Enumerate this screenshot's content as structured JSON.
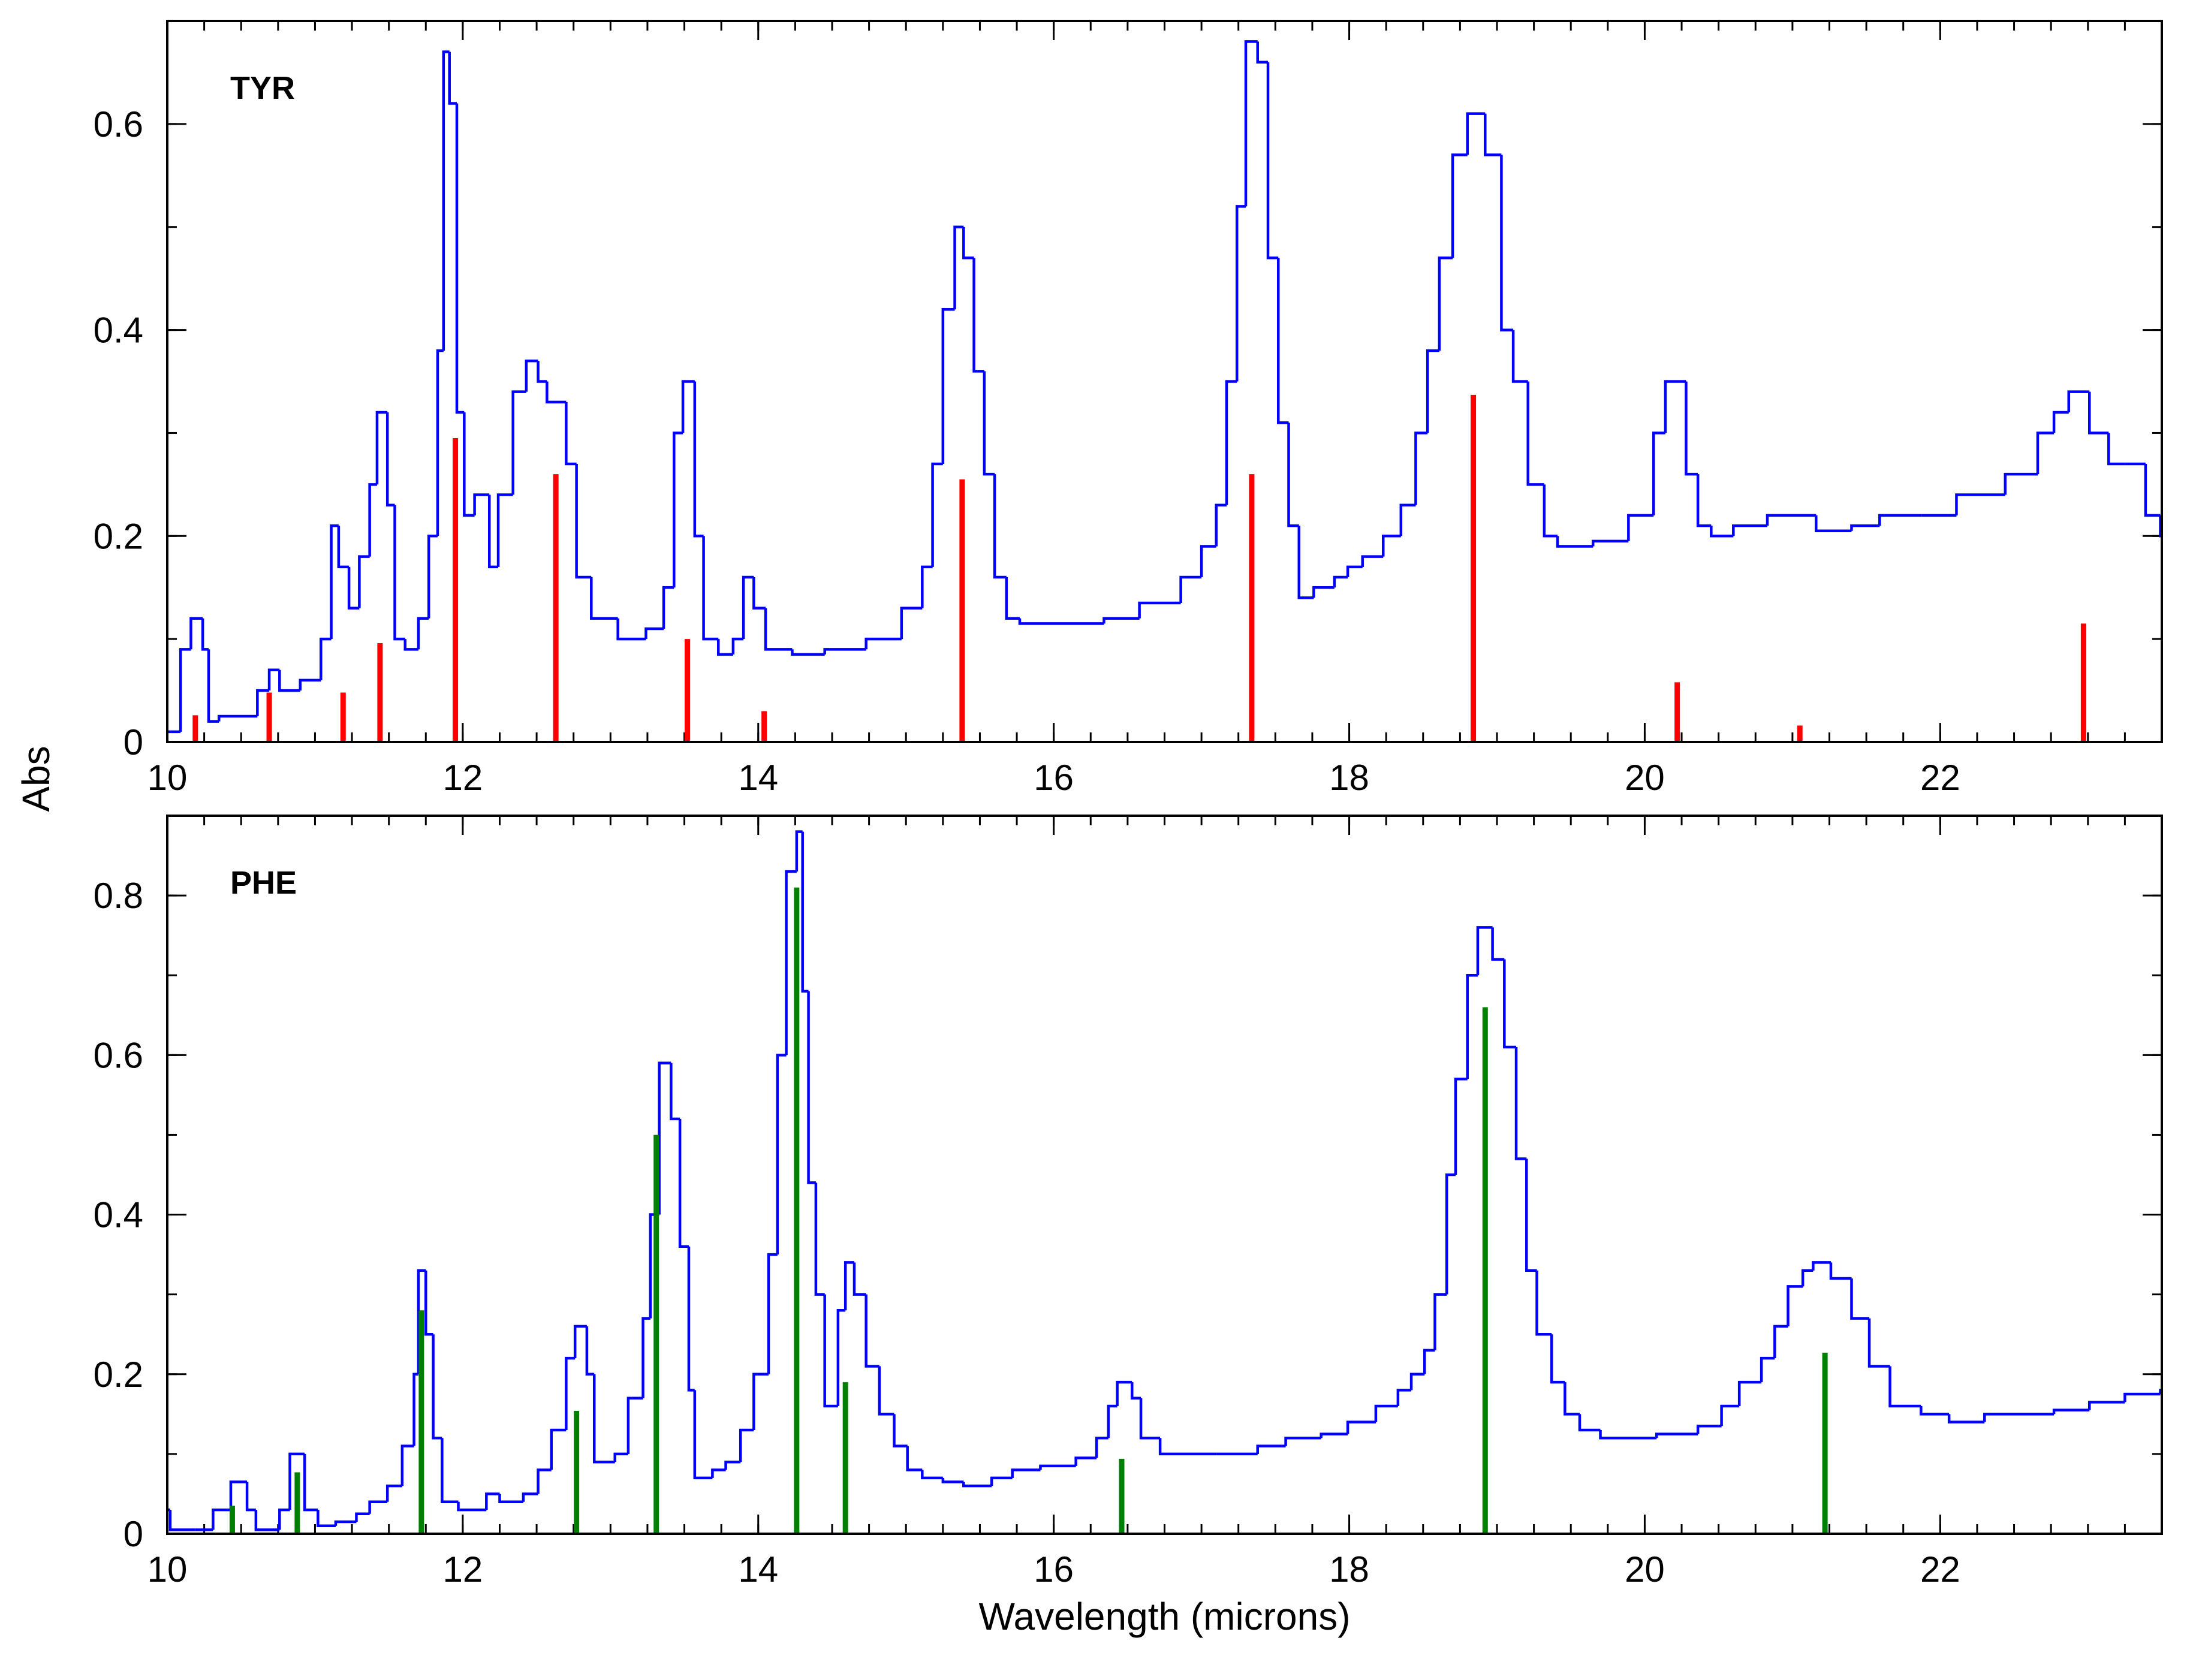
{
  "chart_data": [
    {
      "type": "line",
      "step": true,
      "label": "TYR",
      "label_color": "#ff0000",
      "ylabel": "Abs",
      "color": "#0000ff",
      "x": [
        10.0,
        10.09,
        10.16,
        10.24,
        10.28,
        10.35,
        10.61,
        10.69,
        10.76,
        10.9,
        11.04,
        11.11,
        11.16,
        11.23,
        11.3,
        11.37,
        11.42,
        11.49,
        11.54,
        11.61,
        11.7,
        11.77,
        11.83,
        11.87,
        11.91,
        11.96,
        12.01,
        12.08,
        12.18,
        12.24,
        12.34,
        12.43,
        12.51,
        12.57,
        12.7,
        12.77,
        12.87,
        13.05,
        13.24,
        13.36,
        13.43,
        13.49,
        13.57,
        13.63,
        13.73,
        13.83,
        13.9,
        13.97,
        14.05,
        14.23,
        14.45,
        14.73,
        14.97,
        15.11,
        15.18,
        15.25,
        15.33,
        15.39,
        15.46,
        15.53,
        15.6,
        15.68,
        15.77,
        16.34,
        16.58,
        16.86,
        17.0,
        17.1,
        17.17,
        17.24,
        17.3,
        17.38,
        17.45,
        17.52,
        17.59,
        17.66,
        17.76,
        17.9,
        17.99,
        18.09,
        18.23,
        18.35,
        18.45,
        18.53,
        18.61,
        18.7,
        18.8,
        18.92,
        19.03,
        19.11,
        19.21,
        19.32,
        19.41,
        19.65,
        19.89,
        20.06,
        20.14,
        20.28,
        20.36,
        20.45,
        20.6,
        20.83,
        21.16,
        21.4,
        21.59,
        21.87,
        22.11,
        22.44,
        22.66,
        22.77,
        22.87,
        23.01,
        23.14,
        23.25,
        23.39,
        23.49
      ],
      "values": [
        0.01,
        0.09,
        0.12,
        0.09,
        0.02,
        0.025,
        0.05,
        0.07,
        0.05,
        0.06,
        0.1,
        0.21,
        0.17,
        0.13,
        0.18,
        0.25,
        0.32,
        0.23,
        0.1,
        0.09,
        0.12,
        0.2,
        0.38,
        0.67,
        0.62,
        0.32,
        0.22,
        0.24,
        0.17,
        0.24,
        0.34,
        0.37,
        0.35,
        0.33,
        0.27,
        0.16,
        0.12,
        0.1,
        0.11,
        0.15,
        0.3,
        0.35,
        0.2,
        0.1,
        0.085,
        0.1,
        0.16,
        0.13,
        0.09,
        0.085,
        0.09,
        0.1,
        0.13,
        0.17,
        0.27,
        0.42,
        0.5,
        0.47,
        0.36,
        0.26,
        0.16,
        0.12,
        0.115,
        0.12,
        0.135,
        0.16,
        0.19,
        0.23,
        0.35,
        0.52,
        0.68,
        0.66,
        0.47,
        0.31,
        0.21,
        0.14,
        0.15,
        0.16,
        0.17,
        0.18,
        0.2,
        0.23,
        0.3,
        0.38,
        0.47,
        0.57,
        0.61,
        0.57,
        0.4,
        0.35,
        0.25,
        0.2,
        0.19,
        0.195,
        0.22,
        0.3,
        0.35,
        0.26,
        0.21,
        0.2,
        0.21,
        0.22,
        0.205,
        0.21,
        0.22,
        0.22,
        0.24,
        0.26,
        0.3,
        0.32,
        0.34,
        0.3,
        0.27,
        0.27,
        0.22,
        0.2
      ],
      "sticks": {
        "color": "#ff0000",
        "x": [
          10.19,
          10.69,
          11.19,
          11.44,
          11.95,
          12.63,
          13.52,
          14.04,
          15.38,
          17.34,
          18.84,
          20.22,
          21.05,
          22.97
        ],
        "values": [
          0.026,
          0.048,
          0.048,
          0.096,
          0.295,
          0.26,
          0.1,
          0.03,
          0.255,
          0.26,
          0.337,
          0.058,
          0.016,
          0.115
        ]
      },
      "xlim": [
        10,
        23.5
      ],
      "ylim": [
        0,
        0.7
      ],
      "xticks": [
        10,
        12,
        14,
        16,
        18,
        20,
        22
      ],
      "yticks": [
        0,
        0.2,
        0.4,
        0.6
      ],
      "xminor": 0.25,
      "yminor": 0.1
    },
    {
      "type": "line",
      "step": true,
      "label": "PHE",
      "label_color": "#008000",
      "xlabel": "Wavelength (microns)",
      "color": "#0000ff",
      "x": [
        10.0,
        10.02,
        10.19,
        10.31,
        10.43,
        10.54,
        10.6,
        10.76,
        10.83,
        10.93,
        11.02,
        11.14,
        11.28,
        11.37,
        11.49,
        11.59,
        11.67,
        11.7,
        11.75,
        11.8,
        11.86,
        11.97,
        12.16,
        12.25,
        12.41,
        12.51,
        12.6,
        12.7,
        12.76,
        12.84,
        12.89,
        13.03,
        13.12,
        13.22,
        13.27,
        13.33,
        13.41,
        13.47,
        13.53,
        13.57,
        13.69,
        13.78,
        13.88,
        13.97,
        14.07,
        14.13,
        14.19,
        14.26,
        14.3,
        14.34,
        14.39,
        14.45,
        14.54,
        14.59,
        14.65,
        14.73,
        14.82,
        14.92,
        15.01,
        15.11,
        15.25,
        15.39,
        15.58,
        15.72,
        15.91,
        16.15,
        16.29,
        16.37,
        16.43,
        16.53,
        16.59,
        16.72,
        17.1,
        17.38,
        17.57,
        17.81,
        17.99,
        18.18,
        18.33,
        18.42,
        18.51,
        18.58,
        18.66,
        18.72,
        18.8,
        18.87,
        18.97,
        19.05,
        19.13,
        19.2,
        19.27,
        19.37,
        19.46,
        19.56,
        19.7,
        20.08,
        20.36,
        20.52,
        20.64,
        20.79,
        20.88,
        20.97,
        21.07,
        21.14,
        21.26,
        21.4,
        21.52,
        21.66,
        21.87,
        22.06,
        22.3,
        22.77,
        23.01,
        23.25,
        23.49
      ],
      "values": [
        0.03,
        0.005,
        0.005,
        0.03,
        0.065,
        0.03,
        0.005,
        0.03,
        0.1,
        0.03,
        0.01,
        0.015,
        0.025,
        0.04,
        0.06,
        0.11,
        0.2,
        0.33,
        0.25,
        0.12,
        0.04,
        0.03,
        0.05,
        0.04,
        0.05,
        0.08,
        0.13,
        0.22,
        0.26,
        0.2,
        0.09,
        0.1,
        0.17,
        0.27,
        0.4,
        0.59,
        0.52,
        0.36,
        0.18,
        0.07,
        0.08,
        0.09,
        0.13,
        0.2,
        0.35,
        0.6,
        0.83,
        0.88,
        0.68,
        0.44,
        0.3,
        0.16,
        0.28,
        0.34,
        0.3,
        0.21,
        0.15,
        0.11,
        0.08,
        0.07,
        0.065,
        0.06,
        0.07,
        0.08,
        0.085,
        0.095,
        0.12,
        0.16,
        0.19,
        0.17,
        0.12,
        0.1,
        0.1,
        0.11,
        0.12,
        0.125,
        0.14,
        0.16,
        0.18,
        0.2,
        0.23,
        0.3,
        0.45,
        0.57,
        0.7,
        0.76,
        0.72,
        0.61,
        0.47,
        0.33,
        0.25,
        0.19,
        0.15,
        0.13,
        0.12,
        0.125,
        0.135,
        0.16,
        0.19,
        0.22,
        0.26,
        0.31,
        0.33,
        0.34,
        0.32,
        0.27,
        0.21,
        0.16,
        0.15,
        0.14,
        0.15,
        0.155,
        0.165,
        0.175,
        0.18
      ],
      "sticks": {
        "color": "#008000",
        "x": [
          10.44,
          10.88,
          11.72,
          12.77,
          13.31,
          14.26,
          14.59,
          16.46,
          18.92,
          21.22
        ],
        "values": [
          0.035,
          0.077,
          0.28,
          0.154,
          0.5,
          0.81,
          0.19,
          0.094,
          0.66,
          0.227
        ]
      },
      "xlim": [
        10,
        23.5
      ],
      "ylim": [
        0,
        0.9
      ],
      "xticks": [
        10,
        12,
        14,
        16,
        18,
        20,
        22
      ],
      "yticks": [
        0,
        0.2,
        0.4,
        0.6,
        0.8
      ],
      "xminor": 0.25,
      "yminor": 0.1
    }
  ]
}
